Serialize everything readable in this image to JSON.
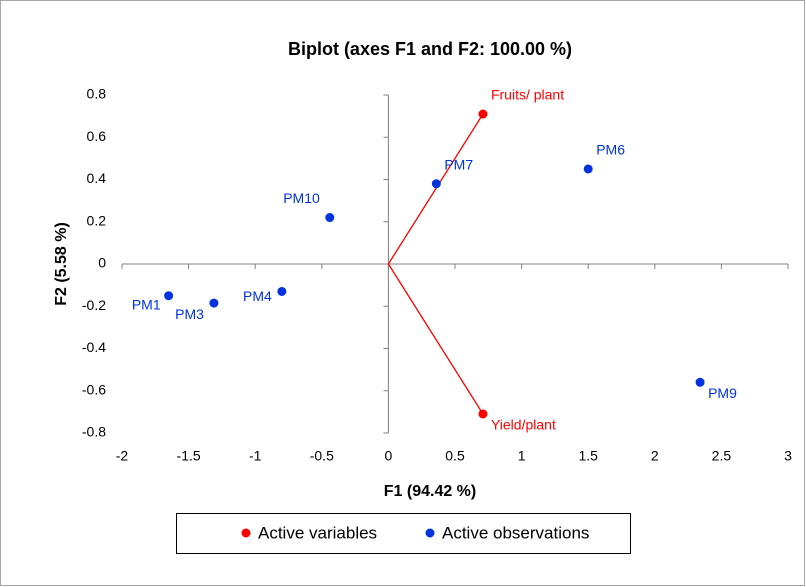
{
  "chart_data": {
    "type": "scatter",
    "title": "Biplot (axes F1 and F2: 100.00 %)",
    "x_label": "F1 (94.42 %)",
    "y_label": "F2 (5.58 %)",
    "xlim": [
      -2,
      3
    ],
    "xticks": [
      -2,
      -1.5,
      -1,
      -0.5,
      0,
      0.5,
      1,
      1.5,
      2,
      2.5,
      3
    ],
    "ylim": [
      -0.8,
      0.8
    ],
    "yticks": [
      -0.8,
      -0.6,
      -0.4,
      -0.2,
      0,
      0.2,
      0.4,
      0.6,
      0.8
    ],
    "legend": "bottom",
    "series": [
      {
        "name": "Active variables",
        "color": "#ff0000",
        "vectors": true,
        "labels": [
          "Fruits/ plant",
          "Yield/plant"
        ],
        "x": [
          0.71,
          0.71
        ],
        "values": [
          0.71,
          -0.71
        ]
      },
      {
        "name": "Active observations",
        "color": "#0033dd",
        "labels": [
          "PM1",
          "PM3",
          "PM4",
          "PM10",
          "PM7",
          "PM6",
          "PM9"
        ],
        "x": [
          -1.65,
          -1.31,
          -0.8,
          -0.44,
          0.36,
          1.5,
          2.34
        ],
        "values": [
          -0.15,
          -0.185,
          -0.13,
          0.22,
          0.38,
          0.45,
          -0.56
        ]
      }
    ]
  }
}
